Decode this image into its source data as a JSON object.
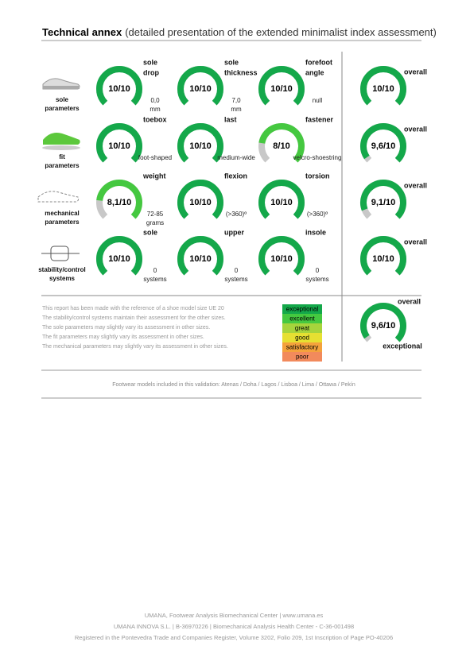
{
  "header": {
    "title_bold": "Technical annex",
    "title_rest": "(detailed presentation of the extended minimalist index assessment)"
  },
  "score_max": 10,
  "rows": [
    {
      "label": [
        "sole",
        "parameters"
      ],
      "gauges": [
        {
          "name": [
            "sole",
            "drop"
          ],
          "score": {
            "value": 10,
            "label": "10/10"
          },
          "note": [
            "0,0",
            "mm"
          ],
          "color": "#14a84a"
        },
        {
          "name": [
            "sole",
            "thickness"
          ],
          "score": {
            "value": 10,
            "label": "10/10"
          },
          "note": [
            "7,0",
            "mm"
          ],
          "color": "#14a84a"
        },
        {
          "name": [
            "forefoot",
            "angle"
          ],
          "score": {
            "value": 10,
            "label": "10/10"
          },
          "note": [
            "null"
          ],
          "color": "#14a84a"
        }
      ],
      "overall": {
        "name": "overall",
        "score": {
          "value": 10,
          "label": "10/10"
        },
        "color": "#14a84a"
      }
    },
    {
      "label": [
        "fit",
        "parameters"
      ],
      "gauges": [
        {
          "name": [
            "toebox"
          ],
          "score": {
            "value": 10,
            "label": "10/10"
          },
          "note": [
            "foot-shaped"
          ],
          "color": "#14a84a"
        },
        {
          "name": [
            "last"
          ],
          "score": {
            "value": 10,
            "label": "10/10"
          },
          "note": [
            "medium-wide"
          ],
          "color": "#14a84a"
        },
        {
          "name": [
            "fastener"
          ],
          "score": {
            "value": 8,
            "label": "8/10"
          },
          "note": [
            "velcro-shoestring"
          ],
          "color": "#45c840"
        }
      ],
      "overall": {
        "name": "overall",
        "score": {
          "value": 9.6,
          "label": "9,6/10"
        },
        "color": "#14a84a"
      }
    },
    {
      "label": [
        "mechanical",
        "parameters"
      ],
      "gauges": [
        {
          "name": [
            "weight"
          ],
          "score": {
            "value": 8.1,
            "label": "8,1/10"
          },
          "note": [
            "72-85",
            "grams"
          ],
          "color": "#45c840"
        },
        {
          "name": [
            "flexion"
          ],
          "score": {
            "value": 10,
            "label": "10/10"
          },
          "note": [
            "(>360)º"
          ],
          "color": "#14a84a"
        },
        {
          "name": [
            "torsion"
          ],
          "score": {
            "value": 10,
            "label": "10/10"
          },
          "note": [
            "(>360)º"
          ],
          "color": "#14a84a"
        }
      ],
      "overall": {
        "name": "overall",
        "score": {
          "value": 9.1,
          "label": "9,1/10"
        },
        "color": "#14a84a"
      }
    },
    {
      "label": [
        "stability/control",
        "systems"
      ],
      "gauges": [
        {
          "name": [
            "sole"
          ],
          "score": {
            "value": 10,
            "label": "10/10"
          },
          "note": [
            "0",
            "systems"
          ],
          "color": "#14a84a"
        },
        {
          "name": [
            "upper"
          ],
          "score": {
            "value": 10,
            "label": "10/10"
          },
          "note": [
            "0",
            "systems"
          ],
          "color": "#14a84a"
        },
        {
          "name": [
            "insole"
          ],
          "score": {
            "value": 10,
            "label": "10/10"
          },
          "note": [
            "0",
            "systems"
          ],
          "color": "#14a84a"
        }
      ],
      "overall": {
        "name": "overall",
        "score": {
          "value": 10,
          "label": "10/10"
        },
        "color": "#14a84a"
      }
    }
  ],
  "notes": [
    "This report has been made with the reference of a shoe model size UE 20",
    "The stability/control systems maintain their assessment for the other sizes.",
    "The sole parameters may slightly vary its assessment in other sizes.",
    "The fit parameters may slightly vary its assessment in other sizes.",
    "The mechanical parameters may slightly vary its assessment in other sizes."
  ],
  "legend": [
    {
      "label": "exceptional",
      "color": "#14a84a"
    },
    {
      "label": "excellent",
      "color": "#45c840"
    },
    {
      "label": "great",
      "color": "#a6d43c"
    },
    {
      "label": "good",
      "color": "#e6e032"
    },
    {
      "label": "satisfactory",
      "color": "#f4a23c"
    },
    {
      "label": "poor",
      "color": "#f28a5c"
    }
  ],
  "final": {
    "name": "overall",
    "score": {
      "value": 9.6,
      "label": "9,6/10"
    },
    "rating": "exceptional",
    "color": "#14a84a"
  },
  "models": "Footwear models included in this validation: Atenas / Doha / Lagos / Lisboa / Lima / Ottawa / Pekín",
  "footer": [
    "UMANA, Footwear Analysis Biomechanical Center  |  www.umana.es",
    "UMANA INNOVA S.L. | B-36970226 | Biomechanical Analysis Health Center - C-36-001498",
    "Registered in the Pontevedra Trade and Companies Register, Volume 3202, Folio 209, 1st Inscription of Page PO-40206"
  ]
}
